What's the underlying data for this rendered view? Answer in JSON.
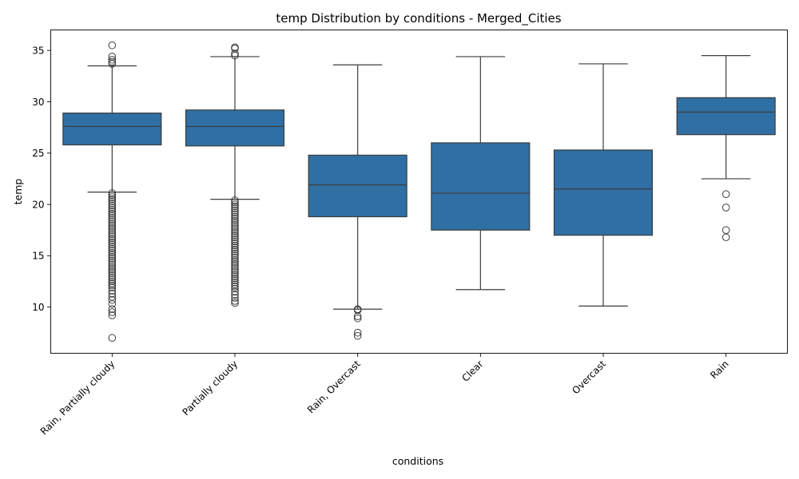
{
  "chart_data": {
    "type": "box",
    "title": "temp Distribution by conditions - Merged_Cities",
    "xlabel": "conditions",
    "ylabel": "temp",
    "ylim": [
      5.5,
      37
    ],
    "yticks": [
      10,
      15,
      20,
      25,
      30,
      35
    ],
    "categories": [
      "Rain, Partially cloudy",
      "Partially cloudy",
      "Rain, Overcast",
      "Clear",
      "Overcast",
      "Rain"
    ],
    "box_color": "#2f6fa4",
    "line_color": "#3d3d3d",
    "grid": false,
    "boxes": [
      {
        "category": "Rain, Partially cloudy",
        "whisker_low": 21.2,
        "q1": 25.8,
        "median": 27.6,
        "q3": 28.9,
        "whisker_high": 33.5,
        "outliers": [
          35.5,
          34.4,
          34.1,
          33.9,
          33.7,
          21.1,
          20.9,
          20.7,
          20.5,
          20.3,
          20.1,
          19.9,
          19.7,
          19.5,
          19.3,
          19.1,
          18.9,
          18.7,
          18.5,
          18.3,
          18.1,
          17.9,
          17.7,
          17.5,
          17.3,
          17.1,
          16.9,
          16.7,
          16.5,
          16.3,
          16.1,
          15.9,
          15.7,
          15.5,
          15.3,
          15.1,
          14.9,
          14.7,
          14.5,
          14.3,
          14.1,
          13.9,
          13.7,
          13.5,
          13.3,
          13.1,
          12.9,
          12.7,
          12.5,
          12.3,
          12.1,
          11.9,
          11.6,
          11.3,
          11.0,
          10.7,
          10.3,
          9.8,
          9.5,
          9.2,
          7.0
        ]
      },
      {
        "category": "Partially cloudy",
        "whisker_low": 20.5,
        "q1": 25.7,
        "median": 27.6,
        "q3": 29.2,
        "whisker_high": 34.4,
        "outliers": [
          35.3,
          35.2,
          34.7,
          34.5,
          20.4,
          20.2,
          20.0,
          19.8,
          19.6,
          19.4,
          19.2,
          19.0,
          18.8,
          18.6,
          18.4,
          18.2,
          18.0,
          17.8,
          17.6,
          17.4,
          17.2,
          17.0,
          16.8,
          16.6,
          16.4,
          16.2,
          16.0,
          15.8,
          15.6,
          15.4,
          15.2,
          15.0,
          14.8,
          14.6,
          14.4,
          14.2,
          14.0,
          13.8,
          13.6,
          13.4,
          13.2,
          13.0,
          12.8,
          12.6,
          12.4,
          12.2,
          12.0,
          11.8,
          11.5,
          11.2,
          10.9,
          10.6,
          10.4
        ]
      },
      {
        "category": "Rain, Overcast",
        "whisker_low": 9.8,
        "q1": 18.8,
        "median": 21.9,
        "q3": 24.8,
        "whisker_high": 33.6,
        "outliers": [
          9.8,
          9.7,
          9.1,
          8.9,
          7.5,
          7.2
        ]
      },
      {
        "category": "Clear",
        "whisker_low": 11.7,
        "q1": 17.5,
        "median": 21.1,
        "q3": 26.0,
        "whisker_high": 34.4,
        "outliers": []
      },
      {
        "category": "Overcast",
        "whisker_low": 10.1,
        "q1": 17.0,
        "median": 21.5,
        "q3": 25.3,
        "whisker_high": 33.7,
        "outliers": []
      },
      {
        "category": "Rain",
        "whisker_low": 22.5,
        "q1": 26.8,
        "median": 29.0,
        "q3": 30.4,
        "whisker_high": 34.5,
        "outliers": [
          21.0,
          19.7,
          17.5,
          16.8
        ]
      }
    ]
  }
}
